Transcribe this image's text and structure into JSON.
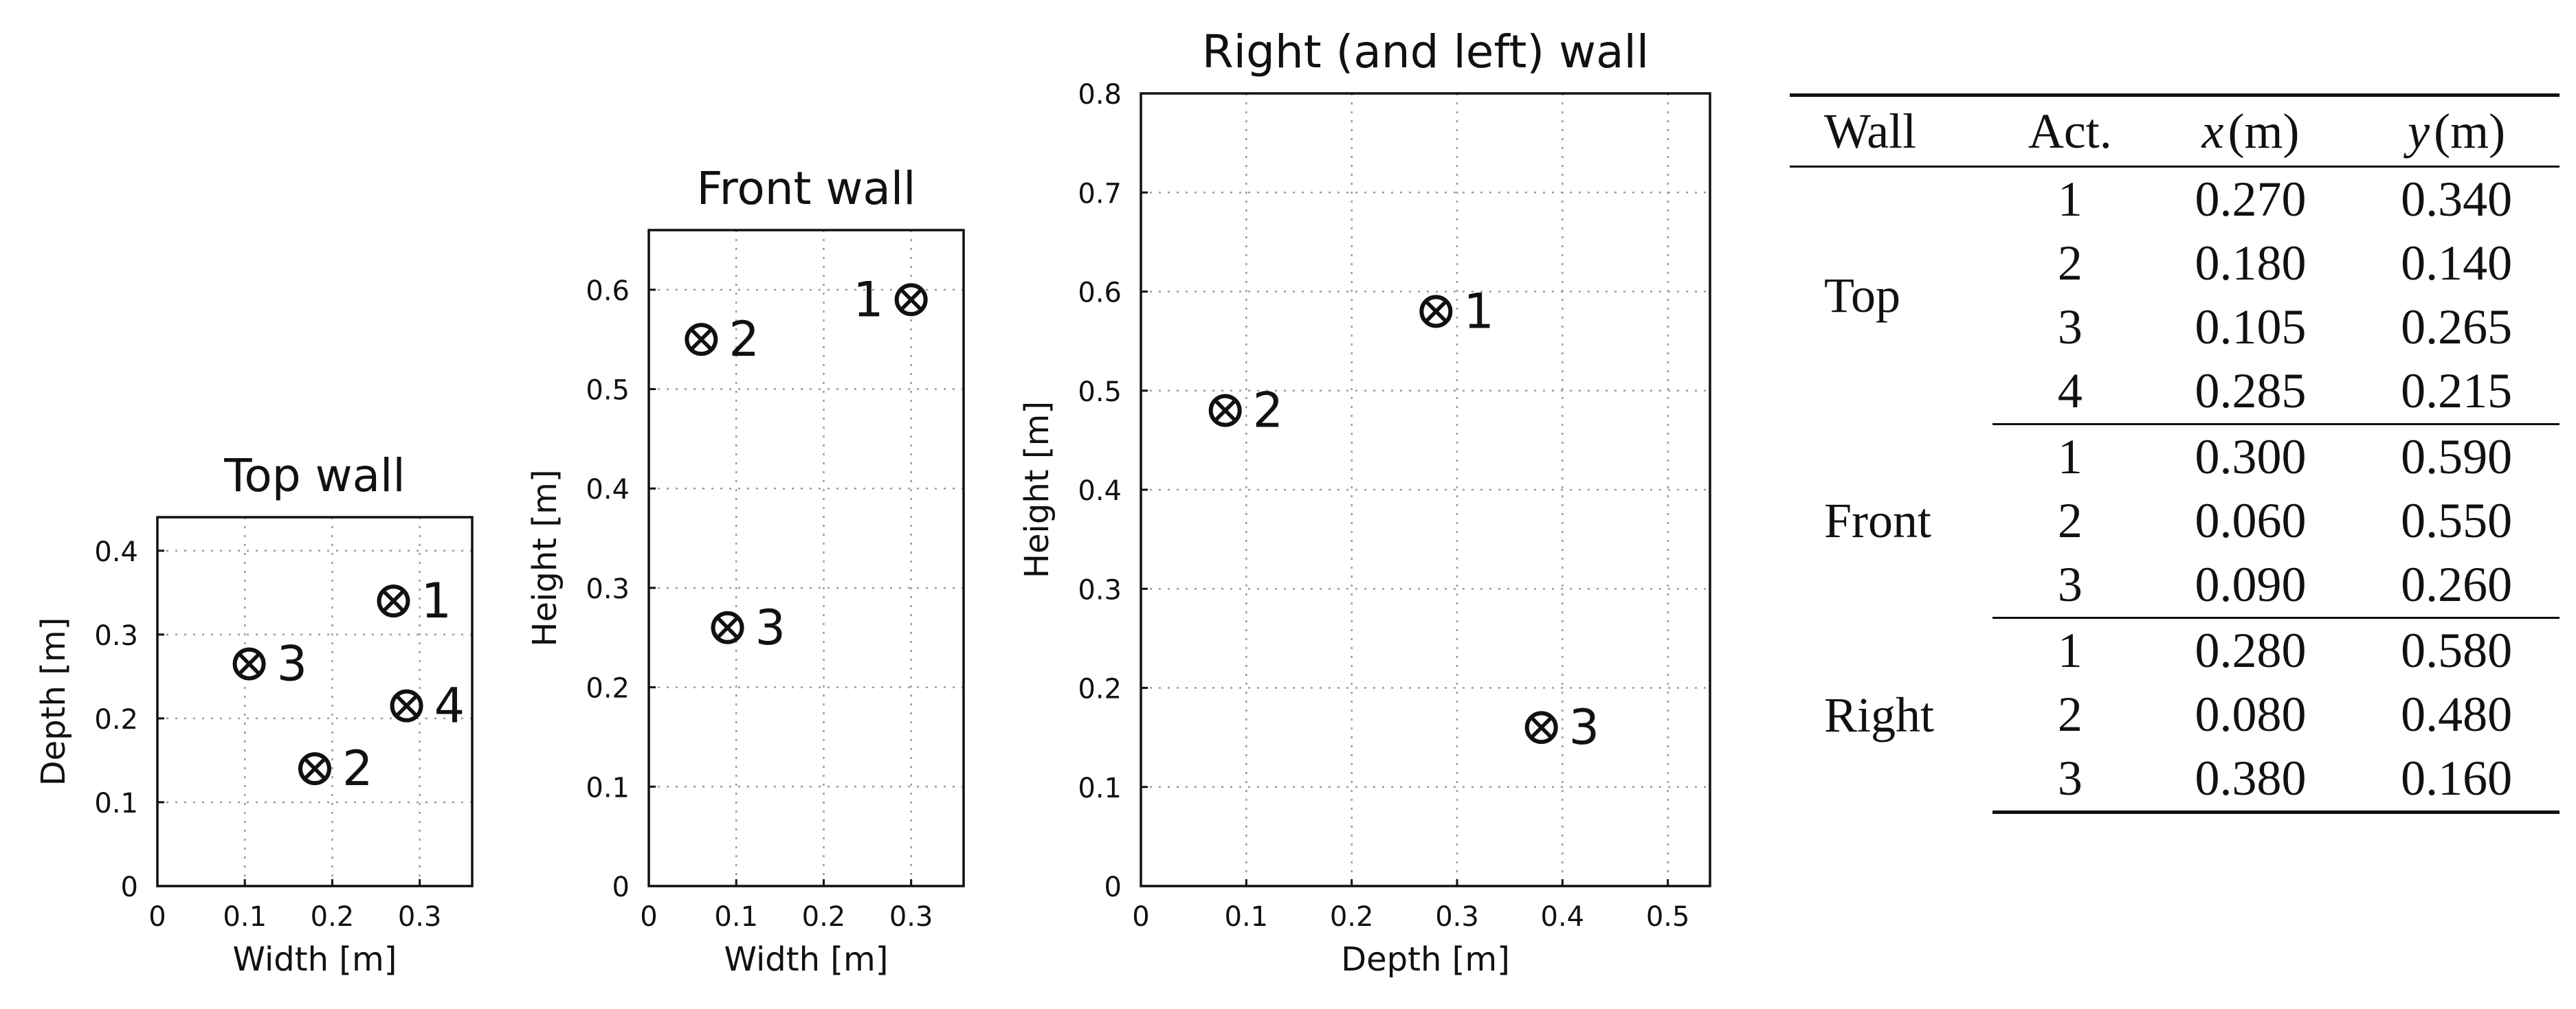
{
  "chart_data": [
    {
      "type": "scatter",
      "title": "Top wall",
      "xlabel": "Width [m]",
      "ylabel": "Depth [m]",
      "xlim": [
        0,
        0.36
      ],
      "ylim": [
        0,
        0.44
      ],
      "xticks": [
        0,
        0.1,
        0.2,
        0.3
      ],
      "yticks": [
        0,
        0.1,
        0.2,
        0.3,
        0.4
      ],
      "xtick_labels": [
        "0",
        "0.1",
        "0.2",
        "0.3"
      ],
      "ytick_labels": [
        "0",
        "0.1",
        "0.2",
        "0.3",
        "0.4"
      ],
      "grid": true,
      "points": [
        {
          "label": "1",
          "x": 0.27,
          "y": 0.34,
          "label_side": "right"
        },
        {
          "label": "2",
          "x": 0.18,
          "y": 0.14,
          "label_side": "right"
        },
        {
          "label": "3",
          "x": 0.105,
          "y": 0.265,
          "label_side": "right"
        },
        {
          "label": "4",
          "x": 0.285,
          "y": 0.215,
          "label_side": "right"
        }
      ]
    },
    {
      "type": "scatter",
      "title": "Front wall",
      "xlabel": "Width [m]",
      "ylabel": "Height [m]",
      "xlim": [
        0,
        0.36
      ],
      "ylim": [
        0,
        0.66
      ],
      "xticks": [
        0,
        0.1,
        0.2,
        0.3
      ],
      "yticks": [
        0,
        0.1,
        0.2,
        0.3,
        0.4,
        0.5,
        0.6
      ],
      "xtick_labels": [
        "0",
        "0.1",
        "0.2",
        "0.3"
      ],
      "ytick_labels": [
        "0",
        "0.1",
        "0.2",
        "0.3",
        "0.4",
        "0.5",
        "0.6"
      ],
      "grid": true,
      "points": [
        {
          "label": "1",
          "x": 0.3,
          "y": 0.59,
          "label_side": "left"
        },
        {
          "label": "2",
          "x": 0.06,
          "y": 0.55,
          "label_side": "right"
        },
        {
          "label": "3",
          "x": 0.09,
          "y": 0.26,
          "label_side": "right"
        }
      ]
    },
    {
      "type": "scatter",
      "title": "Right (and left) wall",
      "xlabel": "Depth [m]",
      "ylabel": "Height [m]",
      "xlim": [
        0,
        0.54
      ],
      "ylim": [
        0,
        0.8
      ],
      "xticks": [
        0,
        0.1,
        0.2,
        0.3,
        0.4,
        0.5
      ],
      "yticks": [
        0,
        0.1,
        0.2,
        0.3,
        0.4,
        0.5,
        0.6,
        0.7,
        0.8
      ],
      "xtick_labels": [
        "0",
        "0.1",
        "0.2",
        "0.3",
        "0.4",
        "0.5"
      ],
      "ytick_labels": [
        "0",
        "0.1",
        "0.2",
        "0.3",
        "0.4",
        "0.5",
        "0.6",
        "0.7",
        "0.8"
      ],
      "grid": true,
      "points": [
        {
          "label": "1",
          "x": 0.28,
          "y": 0.58,
          "label_side": "right"
        },
        {
          "label": "2",
          "x": 0.08,
          "y": 0.48,
          "label_side": "right"
        },
        {
          "label": "3",
          "x": 0.38,
          "y": 0.16,
          "label_side": "right"
        }
      ]
    },
    {
      "type": "table",
      "columns": [
        "Wall",
        "Act.",
        "x",
        "y"
      ],
      "column_units": [
        "",
        "",
        "(m)",
        "(m)"
      ],
      "groups": [
        {
          "wall": "Top",
          "rows": [
            {
              "act": "1",
              "x": "0.270",
              "y": "0.340"
            },
            {
              "act": "2",
              "x": "0.180",
              "y": "0.140"
            },
            {
              "act": "3",
              "x": "0.105",
              "y": "0.265"
            },
            {
              "act": "4",
              "x": "0.285",
              "y": "0.215"
            }
          ]
        },
        {
          "wall": "Front",
          "rows": [
            {
              "act": "1",
              "x": "0.300",
              "y": "0.590"
            },
            {
              "act": "2",
              "x": "0.060",
              "y": "0.550"
            },
            {
              "act": "3",
              "x": "0.090",
              "y": "0.260"
            }
          ]
        },
        {
          "wall": "Right",
          "rows": [
            {
              "act": "1",
              "x": "0.280",
              "y": "0.580"
            },
            {
              "act": "2",
              "x": "0.080",
              "y": "0.480"
            },
            {
              "act": "3",
              "x": "0.380",
              "y": "0.160"
            }
          ]
        }
      ]
    }
  ]
}
